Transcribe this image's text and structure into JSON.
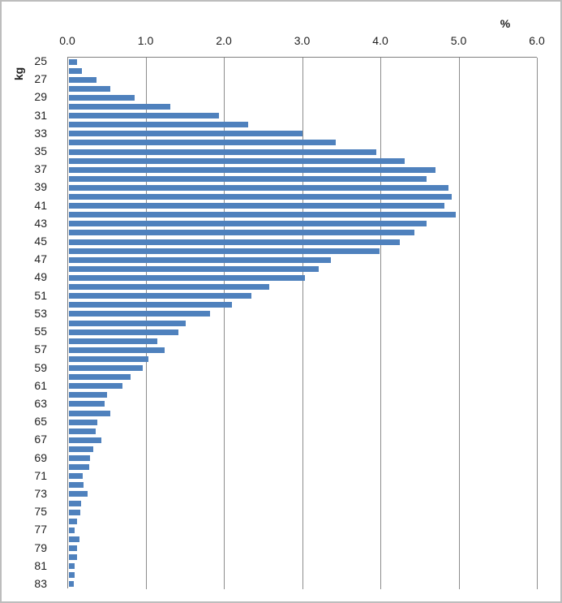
{
  "chart_data": {
    "type": "bar",
    "orientation": "horizontal",
    "xlabel": "%",
    "ylabel": "kg",
    "xlim": [
      0,
      6
    ],
    "x_tick_labels": [
      "0.0",
      "1.0",
      "2.0",
      "3.0",
      "4.0",
      "5.0",
      "6.0"
    ],
    "grid": "vertical gridlines at every 1.0",
    "legend": "none",
    "bar_color": "#4F81BD",
    "gridline_color": "#8C8C8C",
    "axis_line_color": "#808080",
    "text_color": "#1F1F1F",
    "categories": [
      25,
      26,
      27,
      28,
      29,
      30,
      31,
      32,
      33,
      34,
      35,
      36,
      37,
      38,
      39,
      40,
      41,
      42,
      43,
      44,
      45,
      46,
      47,
      48,
      49,
      50,
      51,
      52,
      53,
      54,
      55,
      56,
      57,
      58,
      59,
      60,
      61,
      62,
      63,
      64,
      65,
      66,
      67,
      68,
      69,
      70,
      71,
      72,
      73,
      74,
      75,
      76,
      77,
      78,
      79,
      80,
      81,
      82,
      83
    ],
    "y_tick_labels": [
      "25",
      "27",
      "29",
      "31",
      "33",
      "35",
      "37",
      "39",
      "41",
      "43",
      "45",
      "47",
      "49",
      "51",
      "53",
      "55",
      "57",
      "59",
      "61",
      "63",
      "65",
      "67",
      "69",
      "71",
      "73",
      "75",
      "77",
      "79",
      "81",
      "83"
    ],
    "values": [
      0.1,
      0.17,
      0.35,
      0.53,
      0.84,
      1.3,
      1.92,
      2.29,
      2.98,
      3.41,
      3.93,
      4.29,
      4.68,
      4.57,
      4.85,
      4.89,
      4.8,
      4.94,
      4.57,
      4.41,
      4.23,
      3.97,
      3.35,
      3.19,
      3.02,
      2.56,
      2.33,
      2.08,
      1.8,
      1.49,
      1.4,
      1.13,
      1.22,
      1.02,
      0.94,
      0.79,
      0.68,
      0.49,
      0.46,
      0.53,
      0.36,
      0.34,
      0.41,
      0.31,
      0.27,
      0.26,
      0.18,
      0.19,
      0.24,
      0.16,
      0.15,
      0.1,
      0.07,
      0.13,
      0.1,
      0.1,
      0.07,
      0.07,
      0.06
    ]
  }
}
